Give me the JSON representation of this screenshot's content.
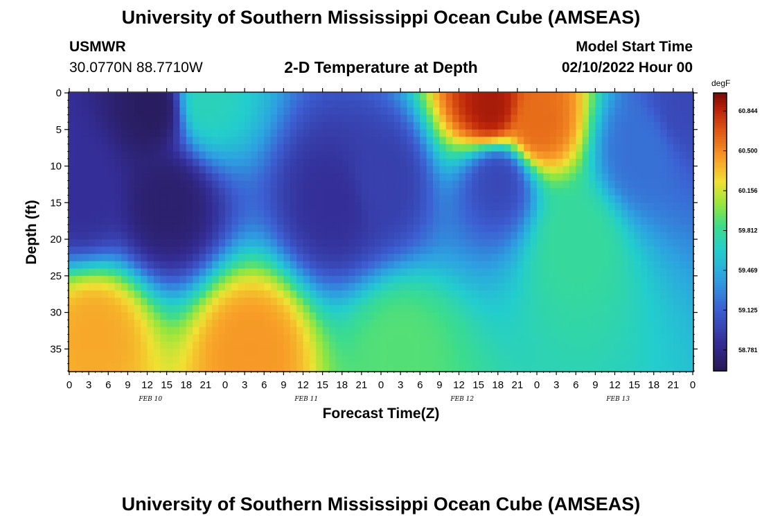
{
  "header": {
    "title": "University of Southern Mississippi Ocean Cube (AMSEAS)",
    "station": "USMWR",
    "location": "30.0770N  88.7710W",
    "subtitle": "2-D Temperature at Depth",
    "model_start_label": "Model Start Time",
    "model_start_value": "02/10/2022 Hour 00"
  },
  "footer_title": "University of Southern Mississippi Ocean Cube (AMSEAS)",
  "chart_data": {
    "type": "heatmap",
    "xlabel": "Forecast Time(Z)",
    "ylabel": "Depth (ft)",
    "x_range_hours": [
      0,
      96
    ],
    "ylim": [
      0,
      38
    ],
    "y_ticks": [
      "0",
      "5",
      "10",
      "15",
      "20",
      "25",
      "30",
      "35"
    ],
    "x_tick_labels": [
      "0",
      "3",
      "6",
      "9",
      "12",
      "15",
      "18",
      "21",
      "0",
      "3",
      "6",
      "9",
      "12",
      "15",
      "18",
      "21",
      "0",
      "3",
      "6",
      "9",
      "12",
      "15",
      "18",
      "21",
      "0",
      "3",
      "6",
      "9",
      "12",
      "15",
      "18",
      "21",
      "0"
    ],
    "date_labels": [
      "FEB 10",
      "FEB 11",
      "FEB 12",
      "FEB 13"
    ],
    "colorbar": {
      "unit": "degF",
      "range": [
        58.6,
        61.0
      ],
      "ticks": [
        "60.844",
        "60.500",
        "60.156",
        "59.812",
        "59.469",
        "59.125",
        "58.781"
      ]
    },
    "temperature_features_degF": [
      {
        "time_h": 13,
        "depth_ft": 2,
        "value": 58.65
      },
      {
        "time_h": 15,
        "depth_ft": 15,
        "value": 58.7
      },
      {
        "time_h": 2,
        "depth_ft": 14,
        "value": 58.85
      },
      {
        "time_h": 4,
        "depth_ft": 33,
        "value": 60.4
      },
      {
        "time_h": 28,
        "depth_ft": 35,
        "value": 60.45
      },
      {
        "time_h": 21,
        "depth_ft": 1,
        "value": 59.7
      },
      {
        "time_h": 41,
        "depth_ft": 15,
        "value": 58.85
      },
      {
        "time_h": 48,
        "depth_ft": 12,
        "value": 58.95
      },
      {
        "time_h": 51,
        "depth_ft": 35,
        "value": 59.9
      },
      {
        "time_h": 65,
        "depth_ft": 2,
        "value": 60.9
      },
      {
        "time_h": 66,
        "depth_ft": 12,
        "value": 59.0
      },
      {
        "time_h": 72,
        "depth_ft": 4,
        "value": 60.6
      },
      {
        "time_h": 78,
        "depth_ft": 20,
        "value": 59.8
      },
      {
        "time_h": 88,
        "depth_ft": 8,
        "value": 59.2
      },
      {
        "time_h": 95,
        "depth_ft": 2,
        "value": 59.0
      }
    ]
  }
}
